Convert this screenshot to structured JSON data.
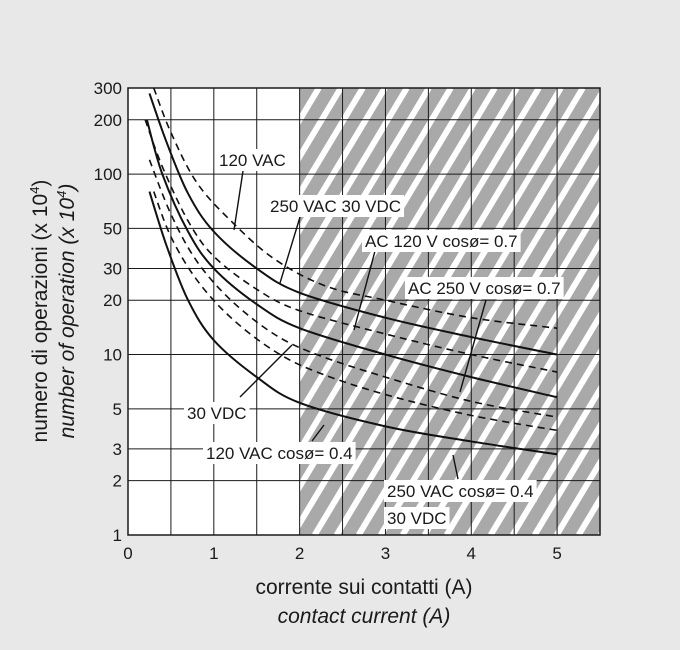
{
  "chart_data": {
    "type": "line",
    "title": "",
    "xlabel": "corrente sui contatti (A)",
    "xlabel_en": "contact current (A)",
    "ylabel_it_prefix": "numero di operazioni (x 10",
    "ylabel_en_prefix": "number of operation (x 10",
    "ylabel_exp": "4",
    "ylabel_suffix": ")",
    "ylabel": "numero di operazioni (x 10⁴) number of operation (x 10⁴)",
    "x_scale": "linear",
    "y_scale": "log",
    "xlim": [
      0,
      5.5
    ],
    "ylim": [
      1,
      300
    ],
    "x_ticks": [
      "0",
      "1",
      "2",
      "3",
      "4",
      "5"
    ],
    "y_ticks": [
      "1",
      "2",
      "3",
      "5",
      "10",
      "20",
      "30",
      "50",
      "100",
      "200",
      "300"
    ],
    "grid": true,
    "hatched_region": {
      "x_from": 2,
      "x_to": 5.5
    },
    "series": [
      {
        "name": "120 VAC",
        "style": "dashed",
        "x": [
          0.3,
          0.5,
          0.8,
          1.2,
          1.7,
          2.3,
          3,
          4,
          5
        ],
        "y": [
          300,
          170,
          90,
          55,
          34,
          24,
          20,
          16,
          14
        ]
      },
      {
        "name": "250 VAC 30 VDC",
        "style": "solid",
        "x": [
          0.25,
          0.45,
          0.7,
          1,
          1.5,
          2,
          3,
          4,
          5
        ],
        "y": [
          280,
          150,
          78,
          48,
          30,
          22,
          16,
          12.5,
          10
        ]
      },
      {
        "name": "AC 120 V cosø= 0.7",
        "style": "dashed",
        "x": [
          0.2,
          0.4,
          0.7,
          1,
          1.5,
          2,
          3,
          4,
          5
        ],
        "y": [
          200,
          110,
          55,
          35,
          23,
          17.5,
          13,
          10,
          8
        ]
      },
      {
        "name": "AC 250 V cosø= 0.7",
        "style": "solid",
        "x": [
          0.22,
          0.4,
          0.7,
          1,
          1.5,
          2,
          3,
          4,
          5
        ],
        "y": [
          200,
          100,
          48,
          30,
          19,
          14,
          10,
          7.5,
          5.8
        ]
      },
      {
        "name": "30 VDC",
        "style": "dashed",
        "x": [
          0.25,
          0.5,
          0.8,
          1.2,
          1.7,
          2.2,
          3,
          4,
          5
        ],
        "y": [
          120,
          60,
          33,
          20,
          13,
          10,
          7.5,
          5.5,
          4.5
        ]
      },
      {
        "name": "120 VAC cosø= 0.4",
        "style": "dashed",
        "x": [
          0.3,
          0.5,
          0.8,
          1.2,
          1.7,
          2.2,
          3,
          4,
          5
        ],
        "y": [
          80,
          45,
          26,
          16,
          10.5,
          8,
          6,
          4.6,
          3.8
        ]
      },
      {
        "name": "250 VAC cosø= 0.4 30 VDC",
        "style": "solid",
        "x": [
          0.25,
          0.45,
          0.7,
          1,
          1.5,
          2,
          3,
          4,
          5
        ],
        "y": [
          80,
          40,
          20,
          12,
          7.5,
          5.4,
          4,
          3.3,
          2.8
        ]
      }
    ],
    "annotations": [
      {
        "id": "a1",
        "text": "120 VAC"
      },
      {
        "id": "a2",
        "text": "250 VAC 30 VDC"
      },
      {
        "id": "a3",
        "text": "AC 120 V cosø= 0.7"
      },
      {
        "id": "a4",
        "text": "AC 250 V cosø= 0.7"
      },
      {
        "id": "a5",
        "text": "30 VDC"
      },
      {
        "id": "a6",
        "text": "120 VAC cosø= 0.4"
      },
      {
        "id": "a7",
        "text": "250 VAC cosø= 0.4"
      },
      {
        "id": "a8",
        "text": "30 VDC"
      }
    ]
  }
}
